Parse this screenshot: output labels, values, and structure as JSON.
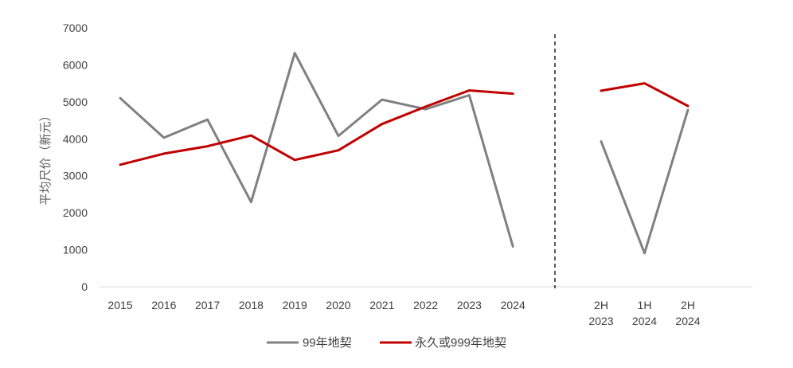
{
  "chart_data": {
    "type": "line",
    "ylabel": "平均尺价（新元）",
    "ylim": [
      0,
      7000
    ],
    "yticks": [
      0,
      1000,
      2000,
      3000,
      4000,
      5000,
      6000,
      7000
    ],
    "grid": false,
    "legend_position": "bottom",
    "panels": [
      {
        "categories": [
          "2015",
          "2016",
          "2017",
          "2018",
          "2019",
          "2020",
          "2021",
          "2022",
          "2023",
          "2024"
        ],
        "series": [
          {
            "name": "99年地契",
            "color": "#808080",
            "values": [
              5100,
              4030,
              4520,
              2290,
              6320,
              4080,
              5060,
              4800,
              5180,
              1090
            ]
          },
          {
            "name": "永久或999年地契",
            "color": "#C00000",
            "values": [
              3300,
              3600,
              3800,
              4090,
              3430,
              3690,
              4400,
              4870,
              5310,
              5220
            ]
          }
        ]
      },
      {
        "categories": [
          [
            "2H",
            "2023"
          ],
          [
            "1H",
            "2024"
          ],
          [
            "2H",
            "2024"
          ]
        ],
        "series": [
          {
            "name": "99年地契",
            "color": "#808080",
            "values": [
              3930,
              910,
              4780
            ]
          },
          {
            "name": "永久或999年地契",
            "color": "#C00000",
            "values": [
              5300,
              5500,
              4890
            ]
          }
        ]
      }
    ],
    "legend": [
      {
        "label": "99年地契",
        "color": "#808080"
      },
      {
        "label": "永久或999年地契",
        "color": "#C00000"
      }
    ]
  }
}
